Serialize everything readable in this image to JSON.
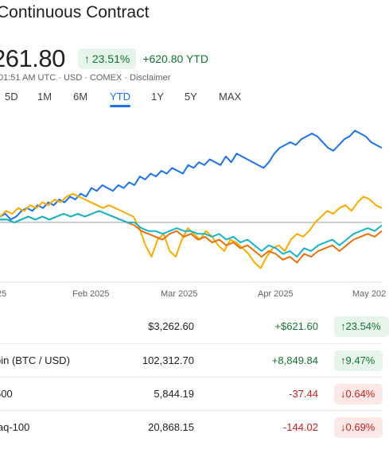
{
  "header": {
    "title": "Continuous Contract",
    "price": "261.80",
    "pct_change": "23.51%",
    "abs_change": "+620.80 YTD",
    "meta": "01:51 AM UTC · USD · COMEX · Disclaimer",
    "up_arrow": "↑"
  },
  "tabs": [
    {
      "label": "5D"
    },
    {
      "label": "1M"
    },
    {
      "label": "6M"
    },
    {
      "label": "YTD",
      "active": true
    },
    {
      "label": "1Y"
    },
    {
      "label": "5Y"
    },
    {
      "label": "MAX"
    }
  ],
  "colors": {
    "gold": "#1a73e8",
    "btc": "#f9ab00",
    "sp500": "#e8710a",
    "nasdaq": "#12b5cb",
    "baseline": "#9aa0a6"
  },
  "chart_data": {
    "type": "line",
    "x_tick_labels": [
      "25",
      "Feb 2025",
      "Mar 2025",
      "Apr 2025",
      "May 202"
    ],
    "series": [
      {
        "color": "#1a73e8",
        "values": [
          2,
          3,
          1,
          2,
          4,
          5,
          4,
          6,
          5,
          7,
          6,
          8,
          7,
          9,
          8,
          10,
          9,
          12,
          11,
          13,
          12,
          11,
          13,
          12,
          14,
          13,
          16,
          15,
          17,
          16,
          18,
          17,
          19,
          18,
          17,
          20,
          19,
          21,
          20,
          22,
          21,
          20,
          23,
          21,
          24,
          23,
          22,
          21,
          20,
          19,
          21,
          24,
          26,
          27,
          28,
          27,
          29,
          30,
          31,
          30,
          28,
          26,
          25,
          27,
          29,
          30,
          32,
          31,
          30,
          28,
          27,
          26
        ]
      },
      {
        "color": "#f9ab00",
        "values": [
          2,
          4,
          3,
          5,
          4,
          6,
          5,
          7,
          6,
          8,
          7,
          9,
          10,
          9,
          8,
          7,
          6,
          5,
          6,
          5,
          4,
          3,
          2,
          -2,
          -8,
          -12,
          -6,
          -4,
          -10,
          -12,
          -6,
          -2,
          -4,
          -6,
          -3,
          -5,
          -8,
          -10,
          -6,
          -7,
          -9,
          -11,
          -14,
          -16,
          -12,
          -9,
          -8,
          -10,
          -6,
          -4,
          -5,
          -3,
          0,
          2,
          4,
          3,
          5,
          6,
          4,
          7,
          9,
          8,
          6,
          5
        ]
      },
      {
        "color": "#e8710a",
        "values": [
          1,
          1,
          0,
          1,
          2,
          1,
          2,
          1,
          2,
          3,
          2,
          3,
          2,
          3,
          4,
          3,
          2,
          1,
          0,
          -1,
          -3,
          -4,
          -5,
          -6,
          -4,
          -3,
          -5,
          -4,
          -6,
          -5,
          -7,
          -6,
          -8,
          -7,
          -9,
          -8,
          -10,
          -12,
          -10,
          -11,
          -13,
          -12,
          -14,
          -11,
          -12,
          -10,
          -9,
          -8,
          -10,
          -8,
          -6,
          -5,
          -4,
          -5,
          -3
        ]
      },
      {
        "color": "#12b5cb",
        "values": [
          1,
          1,
          0,
          1,
          2,
          1,
          2,
          1,
          2,
          3,
          2,
          3,
          2,
          3,
          4,
          3,
          2,
          1,
          0,
          0,
          -2,
          -3,
          -3,
          -4,
          -3,
          -2,
          -3,
          -3,
          -4,
          -4,
          -5,
          -4,
          -6,
          -5,
          -7,
          -6,
          -8,
          -10,
          -8,
          -9,
          -11,
          -10,
          -12,
          -9,
          -10,
          -8,
          -7,
          -6,
          -8,
          -6,
          -4,
          -3,
          -2,
          -3,
          -1
        ]
      }
    ],
    "baseline": 0,
    "ylim": [
      -20,
      36
    ],
    "grid": false,
    "legend": "none"
  },
  "table": {
    "rows": [
      {
        "name": "",
        "value": "$3,262.60",
        "change": "+$621.60",
        "pct": "23.54%",
        "dir": "up"
      },
      {
        "name": "pin (BTC / USD)",
        "value": "102,312.70",
        "change": "+8,849.84",
        "pct": "9.47%",
        "dir": "up"
      },
      {
        "name": "500",
        "value": "5,844.19",
        "change": "-37.44",
        "pct": "0.64%",
        "dir": "down"
      },
      {
        "name": "laq-100",
        "value": "20,868.15",
        "change": "-144.02",
        "pct": "0.69%",
        "dir": "down"
      }
    ]
  },
  "arrows": {
    "up": "↑",
    "down": "↓"
  }
}
